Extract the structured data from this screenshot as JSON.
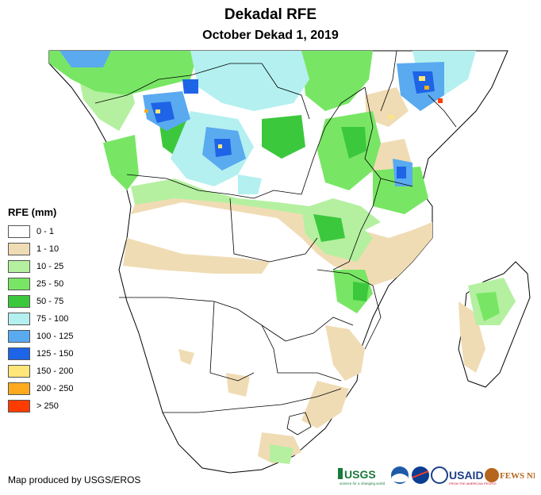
{
  "title": "Dekadal RFE",
  "subtitle": "October Dekad 1, 2019",
  "legend": {
    "title": "RFE (mm)",
    "items": [
      {
        "label": "0 - 1",
        "color": "#ffffff"
      },
      {
        "label": "1 - 10",
        "color": "#f0dcb4"
      },
      {
        "label": "10 - 25",
        "color": "#b4f0a0"
      },
      {
        "label": "25 - 50",
        "color": "#78e664"
      },
      {
        "label": "50 - 75",
        "color": "#3cc83c"
      },
      {
        "label": "75 - 100",
        "color": "#b4f0f0"
      },
      {
        "label": "100 - 125",
        "color": "#5aaaf0"
      },
      {
        "label": "125 - 150",
        "color": "#1e64e6"
      },
      {
        "label": "150 - 200",
        "color": "#ffe678"
      },
      {
        "label": "200 - 250",
        "color": "#ffaa1e"
      },
      {
        "label": "> 250",
        "color": "#ff3c00"
      }
    ]
  },
  "credit": "Map produced by USGS/EROS",
  "logos": {
    "usgs": "USGS",
    "usgs_tagline": "science for a changing world",
    "usaid": "USAID",
    "usaid_tagline": "FROM THE AMERICAN PEOPLE",
    "fewsnet": "FEWS NET"
  }
}
